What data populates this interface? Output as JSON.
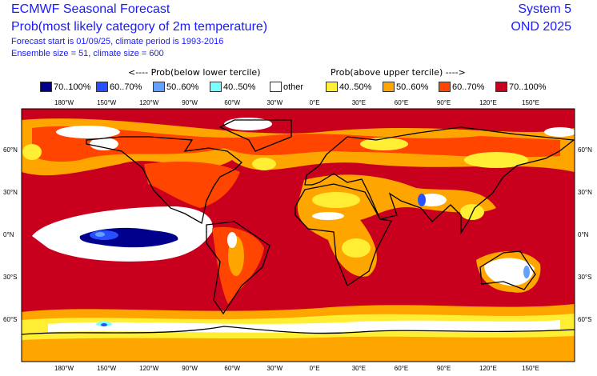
{
  "header": {
    "title": "ECMWF Seasonal Forecast",
    "subtitle": "Prob(most likely category of 2m temperature)",
    "forecast_info": "Forecast start is 01/09/25, climate period is 1993-2016",
    "ensemble_info": "Ensemble size = 51, climate size = 600",
    "system": "System 5",
    "period": "OND 2025"
  },
  "legend": {
    "below_label": "<---- Prob(below lower tercile)",
    "above_label": "Prob(above upper tercile) ---->",
    "items": [
      {
        "label": "70..100%",
        "color": "#00008c"
      },
      {
        "label": "60..70%",
        "color": "#2850ff"
      },
      {
        "label": "50..60%",
        "color": "#64a0ff"
      },
      {
        "label": "40..50%",
        "color": "#78ffff"
      },
      {
        "label": "other",
        "color": "#ffffff"
      },
      {
        "label": "40..50%",
        "color": "#ffee33"
      },
      {
        "label": "50..60%",
        "color": "#ffa500"
      },
      {
        "label": "60..70%",
        "color": "#ff4500"
      },
      {
        "label": "70..100%",
        "color": "#c8001e"
      }
    ]
  },
  "axes": {
    "lon": [
      "180°W",
      "150°W",
      "120°W",
      "90°W",
      "60°W",
      "30°W",
      "0°E",
      "30°E",
      "60°E",
      "90°E",
      "120°E",
      "150°E"
    ],
    "lat": [
      "60°N",
      "30°N",
      "0°N",
      "30°S",
      "60°S"
    ]
  }
}
